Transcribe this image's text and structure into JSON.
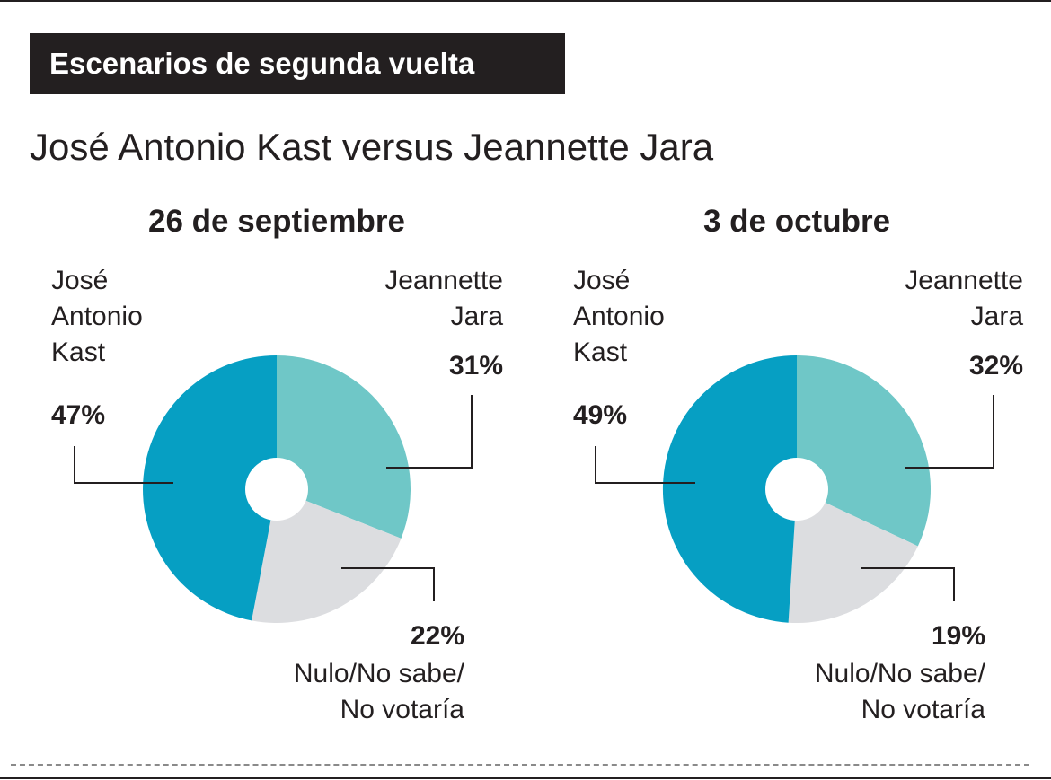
{
  "header": {
    "title": "Escenarios de segunda vuelta"
  },
  "subtitle": "José Antonio Kast versus Jeannette Jara",
  "colors": {
    "kast": "#069fc3",
    "jara": "#6fc7c7",
    "nulo": "#dcdde0",
    "ink": "#231f20"
  },
  "chart_data": [
    {
      "type": "pie",
      "variant": "donut",
      "title": "26 de septiembre",
      "slices": [
        {
          "key": "jara",
          "label_lines": [
            "Jeannette",
            "Jara"
          ],
          "value": 31,
          "display": "31%"
        },
        {
          "key": "nulo",
          "label_lines": [
            "Nulo/No sabe/",
            "No votaría"
          ],
          "value": 22,
          "display": "22%"
        },
        {
          "key": "kast",
          "label_lines": [
            "José",
            "Antonio",
            "Kast"
          ],
          "value": 47,
          "display": "47%"
        }
      ]
    },
    {
      "type": "pie",
      "variant": "donut",
      "title": "3 de octubre",
      "slices": [
        {
          "key": "jara",
          "label_lines": [
            "Jeannette",
            "Jara"
          ],
          "value": 32,
          "display": "32%"
        },
        {
          "key": "nulo",
          "label_lines": [
            "Nulo/No sabe/",
            "No votaría"
          ],
          "value": 19,
          "display": "19%"
        },
        {
          "key": "kast",
          "label_lines": [
            "José",
            "Antonio",
            "Kast"
          ],
          "value": 49,
          "display": "49%"
        }
      ]
    }
  ]
}
